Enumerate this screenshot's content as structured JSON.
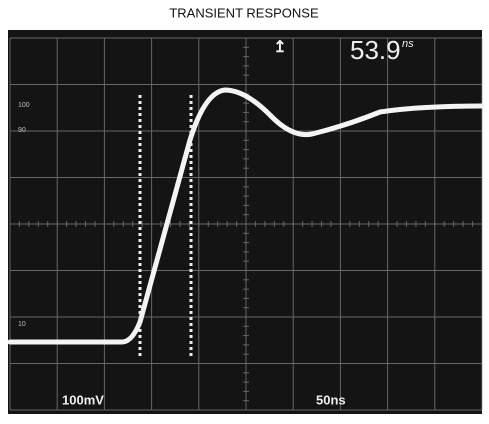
{
  "title": "TRANSIENT RESPONSE",
  "readout": {
    "value": "53.9",
    "unit": "ns"
  },
  "channel_scale": "100mV",
  "time_scale": "50ns",
  "level_labels": [
    "100",
    "90",
    "10"
  ]
}
